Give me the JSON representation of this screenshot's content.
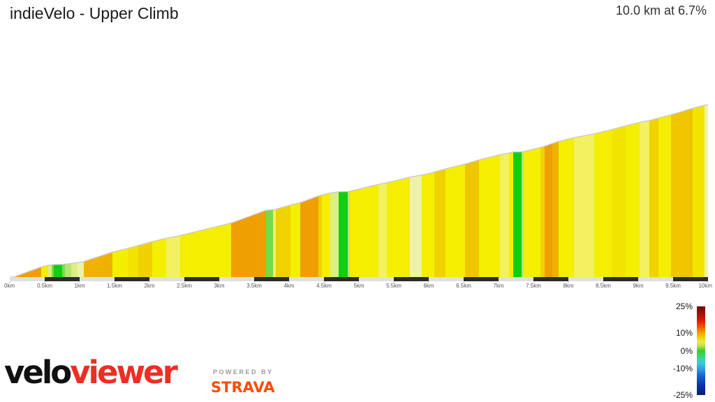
{
  "header": {
    "title": "indieVelo - Upper Climb",
    "summary": "10.0 km at 6.7%"
  },
  "branding": {
    "velo": "velo",
    "viewer": "viewer",
    "powered_by": "POWERED BY",
    "strava": "STRAVA"
  },
  "chart_data": {
    "type": "area",
    "title": "indieVelo - Upper Climb",
    "subtitle": "10.0 km at 6.7%",
    "total_distance_km": 10.0,
    "average_gradient_pct": 6.7,
    "x_axis": {
      "unit": "km",
      "tick_values": [
        0,
        0.5,
        1,
        1.5,
        2,
        2.5,
        3,
        3.5,
        4,
        4.5,
        5,
        5.5,
        6,
        6.5,
        7,
        7.5,
        8,
        8.5,
        9,
        9.5,
        10
      ],
      "tick_labels": [
        "0km",
        "0.5km",
        "1km",
        "1.5km",
        "2km",
        "2.5km",
        "3km",
        "3.5km",
        "4km",
        "4.5km",
        "5km",
        "5.5km",
        "6km",
        "6.5km",
        "7km",
        "7.5km",
        "8km",
        "8.5km",
        "9km",
        "9.5km",
        "10km"
      ]
    },
    "gradient_bands": {
      "green": {
        "color": "#12cd12",
        "gradient_pct": 0.6
      },
      "lightgreen": {
        "color": "#77da4b",
        "gradient_pct": 2.0
      },
      "palegreen": {
        "color": "#b4e56e",
        "gradient_pct": 3.0
      },
      "paleyg": {
        "color": "#dcee85",
        "gradient_pct": 3.8
      },
      "vpale": {
        "color": "#edf3a5",
        "gradient_pct": 4.3
      },
      "paleyellow": {
        "color": "#f2f160",
        "gradient_pct": 5.0
      },
      "yellow": {
        "color": "#f4ef00",
        "gradient_pct": 6.4
      },
      "deepyellow": {
        "color": "#f2e400",
        "gradient_pct": 6.9
      },
      "gold": {
        "color": "#f0d200",
        "gradient_pct": 7.4
      },
      "deepgold": {
        "color": "#efc600",
        "gradient_pct": 7.9
      },
      "amber": {
        "color": "#efb200",
        "gradient_pct": 8.6
      },
      "orange": {
        "color": "#ef9f00",
        "gradient_pct": 9.6
      }
    },
    "segments": [
      [
        0.0,
        0.06,
        "green"
      ],
      [
        0.06,
        0.45,
        "orange"
      ],
      [
        0.45,
        0.55,
        "yellow"
      ],
      [
        0.55,
        0.6,
        "paleyg"
      ],
      [
        0.6,
        0.63,
        "lightgreen"
      ],
      [
        0.63,
        0.75,
        "green"
      ],
      [
        0.75,
        0.79,
        "lightgreen"
      ],
      [
        0.79,
        0.88,
        "palegreen"
      ],
      [
        0.88,
        0.97,
        "paleyg"
      ],
      [
        0.97,
        1.06,
        "vpale"
      ],
      [
        1.06,
        1.47,
        "amber"
      ],
      [
        1.47,
        1.69,
        "yellow"
      ],
      [
        1.69,
        1.84,
        "deepyellow"
      ],
      [
        1.84,
        2.04,
        "gold"
      ],
      [
        2.04,
        2.24,
        "yellow"
      ],
      [
        2.24,
        2.44,
        "paleyellow"
      ],
      [
        2.44,
        3.17,
        "yellow"
      ],
      [
        3.17,
        3.67,
        "orange"
      ],
      [
        3.67,
        3.77,
        "lightgreen"
      ],
      [
        3.77,
        3.81,
        "paleyellow"
      ],
      [
        3.81,
        4.02,
        "gold"
      ],
      [
        4.02,
        4.16,
        "yellow"
      ],
      [
        4.16,
        4.42,
        "orange"
      ],
      [
        4.42,
        4.47,
        "gold"
      ],
      [
        4.47,
        4.59,
        "yellow"
      ],
      [
        4.59,
        4.71,
        "paleyg"
      ],
      [
        4.71,
        4.84,
        "green"
      ],
      [
        4.84,
        4.87,
        "palegreen"
      ],
      [
        4.87,
        5.28,
        "yellow"
      ],
      [
        5.28,
        5.4,
        "paleyellow"
      ],
      [
        5.4,
        5.73,
        "yellow"
      ],
      [
        5.73,
        5.9,
        "vpale"
      ],
      [
        5.9,
        6.08,
        "yellow"
      ],
      [
        6.08,
        6.24,
        "gold"
      ],
      [
        6.24,
        6.52,
        "yellow"
      ],
      [
        6.52,
        6.72,
        "deepgold"
      ],
      [
        6.72,
        7.02,
        "yellow"
      ],
      [
        7.02,
        7.15,
        "paleyellow"
      ],
      [
        7.15,
        7.21,
        "yellow"
      ],
      [
        7.21,
        7.33,
        "green"
      ],
      [
        7.33,
        7.36,
        "palegreen"
      ],
      [
        7.36,
        7.6,
        "yellow"
      ],
      [
        7.6,
        7.66,
        "gold"
      ],
      [
        7.66,
        7.77,
        "orange"
      ],
      [
        7.77,
        7.86,
        "amber"
      ],
      [
        7.86,
        8.08,
        "yellow"
      ],
      [
        8.08,
        8.37,
        "paleyellow"
      ],
      [
        8.37,
        8.62,
        "yellow"
      ],
      [
        8.62,
        8.82,
        "deepyellow"
      ],
      [
        8.82,
        9.02,
        "yellow"
      ],
      [
        9.02,
        9.16,
        "paleyellow"
      ],
      [
        9.16,
        9.29,
        "gold"
      ],
      [
        9.29,
        9.47,
        "yellow"
      ],
      [
        9.47,
        9.78,
        "deepgold"
      ],
      [
        9.78,
        9.95,
        "deepyellow"
      ],
      [
        9.95,
        10.0,
        "vpale"
      ]
    ],
    "legend": {
      "ticks": [
        {
          "label": "25%",
          "value": 25
        },
        {
          "label": "10%",
          "value": 10
        },
        {
          "label": "0%",
          "value": 0
        },
        {
          "label": "-10%",
          "value": -10
        },
        {
          "label": "-25%",
          "value": -25
        }
      ],
      "range": [
        25,
        -25
      ],
      "stops": [
        {
          "p": 0.0,
          "c": "#6f0b0b"
        },
        {
          "p": 0.08,
          "c": "#9e1105"
        },
        {
          "p": 0.15,
          "c": "#d31800"
        },
        {
          "p": 0.21,
          "c": "#ee4400"
        },
        {
          "p": 0.26,
          "c": "#f07800"
        },
        {
          "p": 0.3,
          "c": "#f0a800"
        },
        {
          "p": 0.35,
          "c": "#eed000"
        },
        {
          "p": 0.4,
          "c": "#e8e855"
        },
        {
          "p": 0.45,
          "c": "#b8e048"
        },
        {
          "p": 0.5,
          "c": "#3fc832"
        },
        {
          "p": 0.55,
          "c": "#42d062"
        },
        {
          "p": 0.6,
          "c": "#3ed3ad"
        },
        {
          "p": 0.64,
          "c": "#3cc8d8"
        },
        {
          "p": 0.7,
          "c": "#2ea4e0"
        },
        {
          "p": 0.78,
          "c": "#1a64d0"
        },
        {
          "p": 0.88,
          "c": "#0a36a8"
        },
        {
          "p": 1.0,
          "c": "#001d7a"
        }
      ]
    },
    "distance_bar": {
      "interval_km": 0.5,
      "dark_color": "#2c2c2c",
      "light_color": "#e0e0e0"
    },
    "layout": {
      "grid": false,
      "legend_position": "bottom-right",
      "profile_outline_color": "#c8c8c8"
    }
  }
}
